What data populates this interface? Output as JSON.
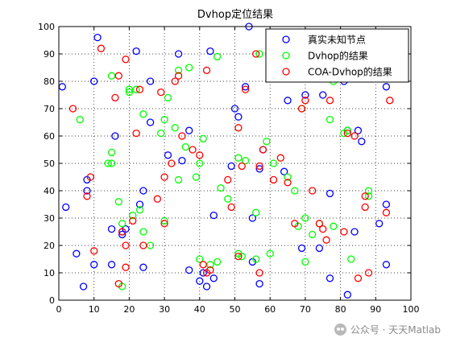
{
  "chart_data": {
    "type": "scatter",
    "title": "Dvhop定位结果",
    "xlabel": "",
    "ylabel": "",
    "xlim": [
      0,
      100
    ],
    "ylim": [
      0,
      100
    ],
    "x_ticks": [
      "0",
      "10",
      "20",
      "30",
      "40",
      "50",
      "60",
      "70",
      "80",
      "90",
      "100"
    ],
    "y_ticks": [
      "0",
      "10",
      "20",
      "30",
      "40",
      "50",
      "60",
      "70",
      "80",
      "90",
      "100"
    ],
    "grid": true,
    "grid_style": "dotted",
    "legend_position": "top-right",
    "series": [
      {
        "name": "真实未知节点",
        "color": "#0000ff",
        "marker": "circle",
        "points": [
          [
            1,
            78
          ],
          [
            2,
            34
          ],
          [
            5,
            17
          ],
          [
            7,
            5
          ],
          [
            8,
            44
          ],
          [
            8,
            40
          ],
          [
            10,
            13
          ],
          [
            11,
            96
          ],
          [
            10,
            80
          ],
          [
            15,
            13
          ],
          [
            15,
            26
          ],
          [
            16,
            60
          ],
          [
            18,
            25
          ],
          [
            18,
            24
          ],
          [
            19,
            26
          ],
          [
            22,
            91
          ],
          [
            23,
            35
          ],
          [
            24,
            40
          ],
          [
            24,
            12
          ],
          [
            26,
            65
          ],
          [
            26,
            80
          ],
          [
            31,
            53
          ],
          [
            34,
            90
          ],
          [
            35,
            51
          ],
          [
            37,
            62
          ],
          [
            37,
            11
          ],
          [
            40,
            7
          ],
          [
            41,
            10
          ],
          [
            42,
            5
          ],
          [
            43,
            91
          ],
          [
            44,
            8
          ],
          [
            44,
            31
          ],
          [
            49,
            49
          ],
          [
            50,
            70
          ],
          [
            51,
            67
          ],
          [
            53,
            78
          ],
          [
            54,
            100
          ],
          [
            55,
            30
          ],
          [
            55,
            14
          ],
          [
            57,
            48
          ],
          [
            57,
            6
          ],
          [
            58,
            55
          ],
          [
            64,
            47
          ],
          [
            65,
            73
          ],
          [
            69,
            19
          ],
          [
            70,
            75
          ],
          [
            74,
            19
          ],
          [
            75,
            75
          ],
          [
            77,
            39
          ],
          [
            77,
            8
          ],
          [
            81,
            80
          ],
          [
            82,
            2
          ],
          [
            82,
            62
          ],
          [
            84,
            25
          ],
          [
            85,
            62
          ],
          [
            86,
            58
          ],
          [
            91,
            28
          ],
          [
            93,
            78
          ],
          [
            93,
            13
          ],
          [
            93,
            35
          ]
        ]
      },
      {
        "name": "Dvhop的结果",
        "color": "#00ff00",
        "marker": "circle",
        "points": [
          [
            6,
            66
          ],
          [
            14,
            50
          ],
          [
            15,
            54
          ],
          [
            15,
            50
          ],
          [
            15,
            82
          ],
          [
            17,
            36
          ],
          [
            18,
            5
          ],
          [
            18,
            28
          ],
          [
            20,
            77
          ],
          [
            20,
            76
          ],
          [
            21,
            31
          ],
          [
            22,
            77
          ],
          [
            23,
            33
          ],
          [
            24,
            25
          ],
          [
            24,
            68
          ],
          [
            26,
            20
          ],
          [
            29,
            61
          ],
          [
            30,
            66
          ],
          [
            30,
            29
          ],
          [
            31,
            74
          ],
          [
            33,
            63
          ],
          [
            34,
            44
          ],
          [
            34,
            84
          ],
          [
            36,
            56
          ],
          [
            37,
            85
          ],
          [
            39,
            45
          ],
          [
            40,
            50
          ],
          [
            40,
            15
          ],
          [
            41,
            59
          ],
          [
            43,
            13
          ],
          [
            45,
            89
          ],
          [
            45,
            14
          ],
          [
            46,
            41
          ],
          [
            48,
            37
          ],
          [
            51,
            52
          ],
          [
            51,
            17
          ],
          [
            52,
            16
          ],
          [
            53,
            51
          ],
          [
            56,
            15
          ],
          [
            56,
            32
          ],
          [
            57,
            90
          ],
          [
            59,
            58
          ],
          [
            60,
            17
          ],
          [
            61,
            50
          ],
          [
            65,
            45
          ],
          [
            67,
            40
          ],
          [
            68,
            27
          ],
          [
            69,
            70
          ],
          [
            70,
            14
          ],
          [
            70,
            30
          ],
          [
            72,
            24
          ],
          [
            74,
            28
          ],
          [
            77,
            66
          ],
          [
            78,
            80
          ],
          [
            78,
            27
          ],
          [
            81,
            61
          ],
          [
            82,
            62
          ],
          [
            83,
            15
          ],
          [
            88,
            40
          ],
          [
            88,
            38
          ]
        ]
      },
      {
        "name": "COA-Dvhop的结果",
        "color": "#ff0000",
        "marker": "circle",
        "points": [
          [
            4,
            70
          ],
          [
            9,
            45
          ],
          [
            8,
            38
          ],
          [
            10,
            18
          ],
          [
            12,
            92
          ],
          [
            16,
            74
          ],
          [
            17,
            6
          ],
          [
            17,
            82
          ],
          [
            18,
            25
          ],
          [
            19,
            88
          ],
          [
            19,
            20
          ],
          [
            19,
            12
          ],
          [
            21,
            29
          ],
          [
            22,
            61
          ],
          [
            23,
            77
          ],
          [
            24,
            20
          ],
          [
            28,
            37
          ],
          [
            29,
            76
          ],
          [
            30,
            45
          ],
          [
            30,
            28
          ],
          [
            32,
            50
          ],
          [
            33,
            80
          ],
          [
            34,
            82
          ],
          [
            35,
            60
          ],
          [
            38,
            55
          ],
          [
            40,
            53
          ],
          [
            41,
            13
          ],
          [
            42,
            84
          ],
          [
            42,
            10
          ],
          [
            43,
            11
          ],
          [
            48,
            44
          ],
          [
            49,
            34
          ],
          [
            51,
            16
          ],
          [
            51,
            63
          ],
          [
            52,
            49
          ],
          [
            53,
            77
          ],
          [
            56,
            90
          ],
          [
            57,
            10
          ],
          [
            57,
            49
          ],
          [
            58,
            55
          ],
          [
            61,
            44
          ],
          [
            63,
            52
          ],
          [
            65,
            43
          ],
          [
            67,
            28
          ],
          [
            69,
            70
          ],
          [
            70,
            73
          ],
          [
            72,
            40
          ],
          [
            74,
            28
          ],
          [
            75,
            26
          ],
          [
            76,
            22
          ],
          [
            77,
            73
          ],
          [
            81,
            25
          ],
          [
            82,
            61
          ],
          [
            84,
            60
          ],
          [
            85,
            8
          ],
          [
            87,
            38
          ],
          [
            87,
            34
          ],
          [
            88,
            10
          ],
          [
            93,
            32
          ],
          [
            94,
            73
          ]
        ]
      }
    ]
  },
  "watermark": {
    "text": "公众号 · 天天Matlab",
    "icon": "wechat-icon",
    "color": "#8a8a8a"
  }
}
